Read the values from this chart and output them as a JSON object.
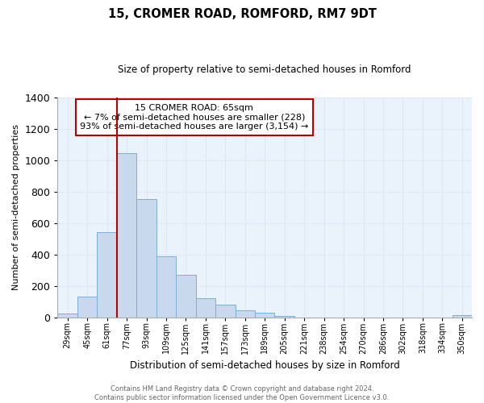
{
  "title": "15, CROMER ROAD, ROMFORD, RM7 9DT",
  "subtitle": "Size of property relative to semi-detached houses in Romford",
  "xlabel": "Distribution of semi-detached houses by size in Romford",
  "ylabel": "Number of semi-detached properties",
  "bin_labels": [
    "29sqm",
    "45sqm",
    "61sqm",
    "77sqm",
    "93sqm",
    "109sqm",
    "125sqm",
    "141sqm",
    "157sqm",
    "173sqm",
    "189sqm",
    "205sqm",
    "221sqm",
    "238sqm",
    "254sqm",
    "270sqm",
    "286sqm",
    "302sqm",
    "318sqm",
    "334sqm",
    "350sqm"
  ],
  "bar_values": [
    25,
    130,
    540,
    1045,
    750,
    390,
    270,
    120,
    83,
    43,
    27,
    10,
    0,
    0,
    0,
    0,
    0,
    0,
    0,
    0,
    12
  ],
  "bar_color": "#c8d9ee",
  "bar_edge_color": "#7bafd4",
  "property_line_bin_index": 3,
  "property_line_color": "#bb0000",
  "ylim": [
    0,
    1400
  ],
  "yticks": [
    0,
    200,
    400,
    600,
    800,
    1000,
    1200,
    1400
  ],
  "annotation_title": "15 CROMER ROAD: 65sqm",
  "annotation_line1": "← 7% of semi-detached houses are smaller (228)",
  "annotation_line2": "93% of semi-detached houses are larger (3,154) →",
  "annotation_box_color": "#ffffff",
  "annotation_box_edge": "#bb0000",
  "footer_line1": "Contains HM Land Registry data © Crown copyright and database right 2024.",
  "footer_line2": "Contains public sector information licensed under the Open Government Licence v3.0.",
  "grid_color": "#dce8f5",
  "background_color": "#ffffff"
}
